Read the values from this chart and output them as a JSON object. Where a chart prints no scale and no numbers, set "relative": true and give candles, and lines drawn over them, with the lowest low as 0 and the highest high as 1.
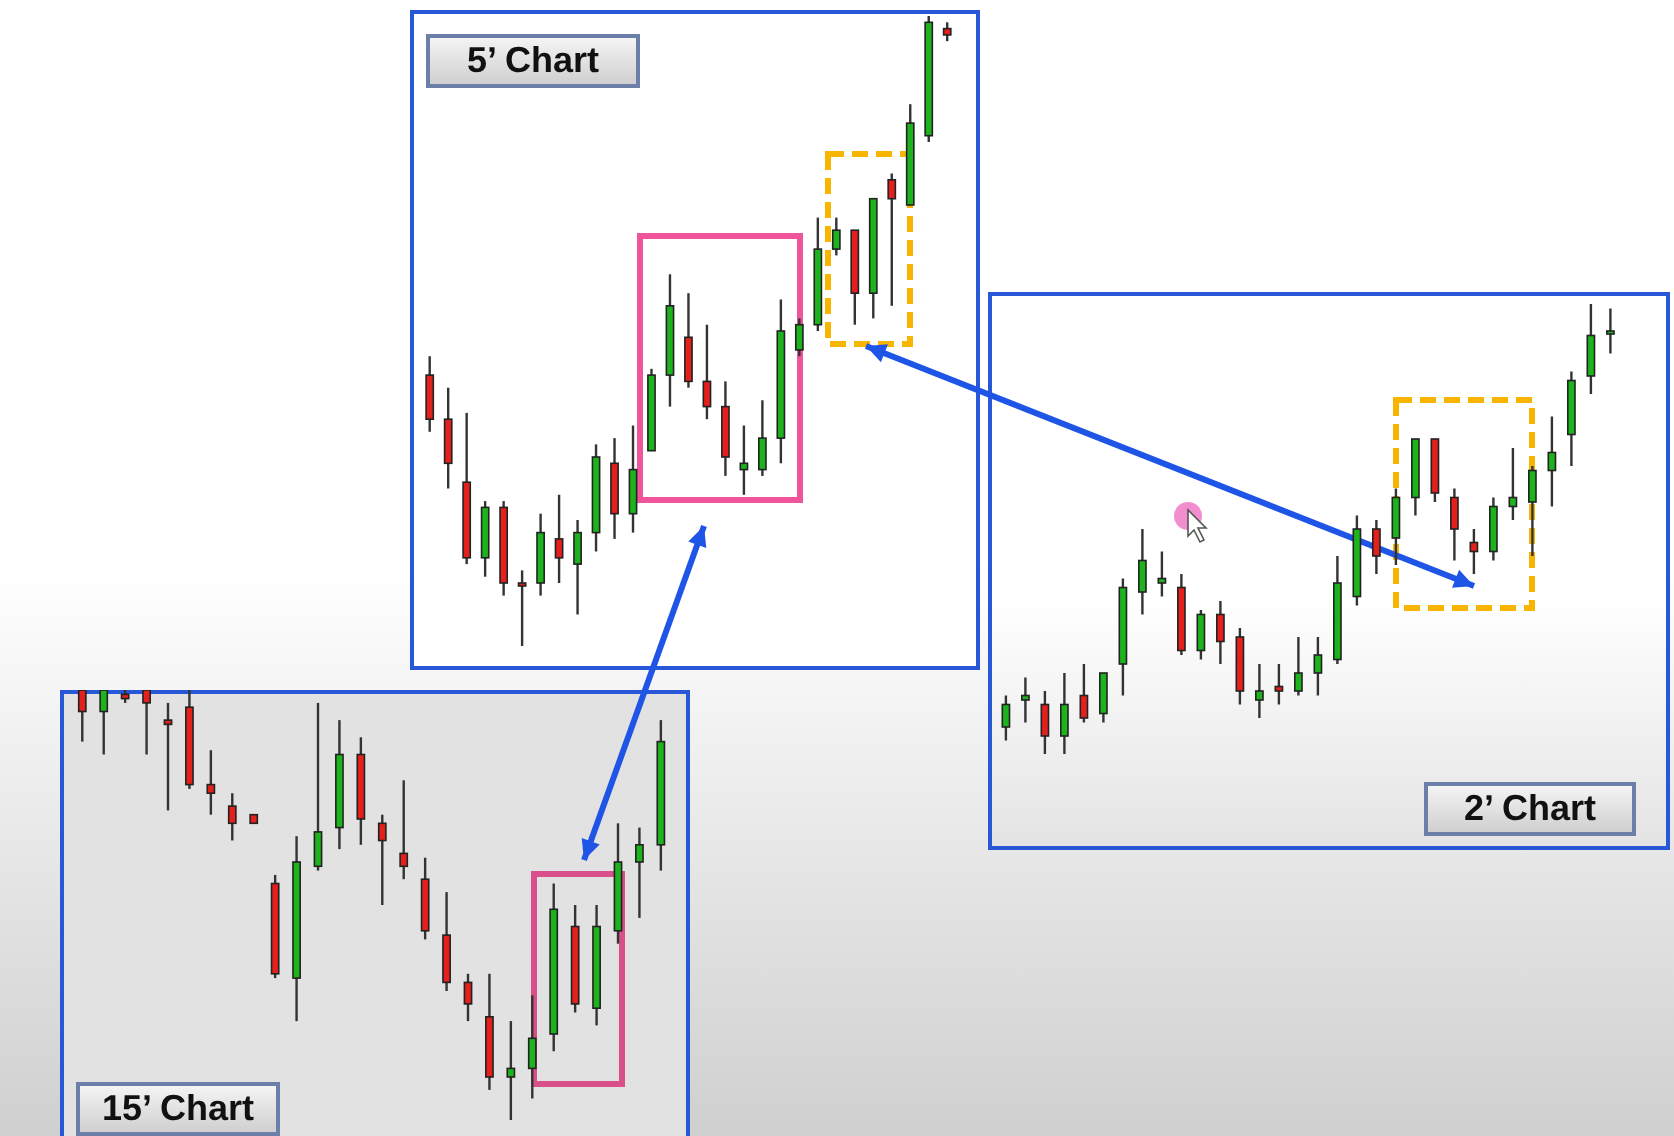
{
  "chart_data": [
    {
      "type": "candlestick",
      "title": "5’ Chart",
      "relative": true,
      "categories": [
        null,
        null,
        null,
        null,
        null,
        null,
        null,
        null,
        null,
        null,
        null,
        null,
        null,
        null,
        null,
        null,
        null,
        null,
        null,
        null,
        null,
        null,
        null,
        null,
        null,
        null,
        null,
        null,
        null
      ],
      "ohlc": [
        [
          0.43,
          0.46,
          0.34,
          0.36
        ],
        [
          0.36,
          0.41,
          0.25,
          0.29
        ],
        [
          0.26,
          0.37,
          0.13,
          0.14
        ],
        [
          0.14,
          0.23,
          0.11,
          0.22
        ],
        [
          0.22,
          0.23,
          0.08,
          0.1
        ],
        [
          0.1,
          0.12,
          0,
          0.1
        ],
        [
          0.1,
          0.21,
          0.08,
          0.18
        ],
        [
          0.17,
          0.24,
          0.1,
          0.14
        ],
        [
          0.13,
          0.2,
          0.05,
          0.18
        ],
        [
          0.18,
          0.32,
          0.15,
          0.3
        ],
        [
          0.29,
          0.33,
          0.17,
          0.21
        ],
        [
          0.21,
          0.35,
          0.18,
          0.28
        ],
        [
          0.31,
          0.44,
          0.31,
          0.43
        ],
        [
          0.43,
          0.59,
          0.38,
          0.54
        ],
        [
          0.49,
          0.56,
          0.41,
          0.42
        ],
        [
          0.42,
          0.51,
          0.36,
          0.38
        ],
        [
          0.38,
          0.42,
          0.27,
          0.3
        ],
        [
          0.28,
          0.35,
          0.24,
          0.29
        ],
        [
          0.28,
          0.39,
          0.27,
          0.33
        ],
        [
          0.33,
          0.55,
          0.29,
          0.5
        ],
        [
          0.47,
          0.52,
          0.46,
          0.51
        ],
        [
          0.51,
          0.68,
          0.5,
          0.63
        ],
        [
          0.63,
          0.68,
          0.62,
          0.66
        ],
        [
          0.66,
          0.66,
          0.51,
          0.56
        ],
        [
          0.56,
          0.71,
          0.52,
          0.71
        ],
        [
          0.74,
          0.75,
          0.54,
          0.71
        ],
        [
          0.7,
          0.86,
          0.7,
          0.83
        ],
        [
          0.81,
          1,
          0.8,
          0.99
        ],
        [
          0.98,
          0.99,
          0.96,
          0.97
        ]
      ],
      "colors": [
        "#e3201b",
        "#e3201b",
        "#e3201b",
        "#1db31d",
        "#e3201b",
        "#e3201b",
        "#1db31d",
        "#e3201b",
        "#1db31d",
        "#1db31d",
        "#e3201b",
        "#1db31d",
        "#1db31d",
        "#1db31d",
        "#e3201b",
        "#e3201b",
        "#e3201b",
        "#1db31d",
        "#1db31d",
        "#1db31d",
        "#1db31d",
        "#1db31d",
        "#1db31d",
        "#e3201b",
        "#1db31d",
        "#e3201b",
        "#1db31d",
        "#1db31d",
        "#e3201b"
      ]
    },
    {
      "type": "candlestick",
      "title": "2’ Chart",
      "relative": true,
      "categories": [
        null,
        null,
        null,
        null,
        null,
        null,
        null,
        null,
        null,
        null,
        null,
        null,
        null,
        null,
        null,
        null,
        null,
        null,
        null,
        null,
        null,
        null,
        null,
        null,
        null,
        null,
        null,
        null,
        null,
        null,
        null,
        null
      ],
      "ohlc": [
        [
          0.06,
          0.13,
          0.03,
          0.11
        ],
        [
          0.12,
          0.17,
          0.07,
          0.13
        ],
        [
          0.11,
          0.14,
          0,
          0.04
        ],
        [
          0.04,
          0.18,
          0,
          0.11
        ],
        [
          0.13,
          0.2,
          0.07,
          0.08
        ],
        [
          0.09,
          0.18,
          0.07,
          0.18
        ],
        [
          0.2,
          0.39,
          0.13,
          0.37
        ],
        [
          0.36,
          0.5,
          0.31,
          0.43
        ],
        [
          0.38,
          0.45,
          0.35,
          0.39
        ],
        [
          0.37,
          0.4,
          0.22,
          0.23
        ],
        [
          0.23,
          0.32,
          0.21,
          0.31
        ],
        [
          0.31,
          0.34,
          0.2,
          0.25
        ],
        [
          0.26,
          0.28,
          0.11,
          0.14
        ],
        [
          0.12,
          0.2,
          0.08,
          0.14
        ],
        [
          0.15,
          0.2,
          0.11,
          0.14
        ],
        [
          0.14,
          0.26,
          0.13,
          0.18
        ],
        [
          0.18,
          0.26,
          0.13,
          0.22
        ],
        [
          0.21,
          0.44,
          0.2,
          0.38
        ],
        [
          0.35,
          0.53,
          0.33,
          0.5
        ],
        [
          0.5,
          0.52,
          0.4,
          0.44
        ],
        [
          0.48,
          0.59,
          0.42,
          0.57
        ],
        [
          0.57,
          0.7,
          0.53,
          0.7
        ],
        [
          0.7,
          0.7,
          0.56,
          0.58
        ],
        [
          0.57,
          0.59,
          0.43,
          0.5
        ],
        [
          0.47,
          0.5,
          0.4,
          0.45
        ],
        [
          0.45,
          0.57,
          0.43,
          0.55
        ],
        [
          0.55,
          0.68,
          0.52,
          0.57
        ],
        [
          0.56,
          0.64,
          0.44,
          0.63
        ],
        [
          0.63,
          0.75,
          0.55,
          0.67
        ],
        [
          0.71,
          0.85,
          0.64,
          0.83
        ],
        [
          0.84,
          1,
          0.8,
          0.93
        ],
        [
          0.94,
          0.99,
          0.89,
          0.94
        ]
      ],
      "colors": [
        "#1db31d",
        "#1db31d",
        "#e3201b",
        "#1db31d",
        "#e3201b",
        "#1db31d",
        "#1db31d",
        "#1db31d",
        "#1db31d",
        "#e3201b",
        "#1db31d",
        "#e3201b",
        "#e3201b",
        "#1db31d",
        "#e3201b",
        "#1db31d",
        "#1db31d",
        "#1db31d",
        "#1db31d",
        "#e3201b",
        "#1db31d",
        "#1db31d",
        "#e3201b",
        "#e3201b",
        "#e3201b",
        "#1db31d",
        "#1db31d",
        "#1db31d",
        "#1db31d",
        "#1db31d",
        "#1db31d",
        "#1db31d"
      ]
    },
    {
      "type": "candlestick",
      "title": "15’ Chart",
      "relative": true,
      "categories": [
        null,
        null,
        null,
        null,
        null,
        null,
        null,
        null,
        null,
        null,
        null,
        null,
        null,
        null,
        null,
        null,
        null,
        null,
        null,
        null,
        null,
        null,
        null,
        null,
        null,
        null,
        null,
        null
      ],
      "ohlc": [
        [
          1,
          1,
          0.88,
          0.95
        ],
        [
          0.95,
          1,
          0.85,
          1
        ],
        [
          0.99,
          1,
          0.97,
          0.98
        ],
        [
          1,
          1,
          0.85,
          0.97
        ],
        [
          0.93,
          0.97,
          0.72,
          0.92
        ],
        [
          0.96,
          1,
          0.77,
          0.78
        ],
        [
          0.78,
          0.86,
          0.71,
          0.76
        ],
        [
          0.73,
          0.76,
          0.65,
          0.69
        ],
        [
          0.71,
          0.71,
          0.69,
          0.69
        ],
        [
          0.55,
          0.57,
          0.33,
          0.34
        ],
        [
          0.33,
          0.66,
          0.23,
          0.6
        ],
        [
          0.59,
          0.97,
          0.58,
          0.67
        ],
        [
          0.68,
          0.93,
          0.63,
          0.85
        ],
        [
          0.85,
          0.89,
          0.64,
          0.7
        ],
        [
          0.69,
          0.71,
          0.5,
          0.65
        ],
        [
          0.62,
          0.79,
          0.56,
          0.59
        ],
        [
          0.56,
          0.61,
          0.42,
          0.44
        ],
        [
          0.43,
          0.53,
          0.3,
          0.32
        ],
        [
          0.32,
          0.34,
          0.23,
          0.27
        ],
        [
          0.24,
          0.34,
          0.07,
          0.1
        ],
        [
          0.1,
          0.23,
          0,
          0.12
        ],
        [
          0.12,
          0.29,
          0.05,
          0.19
        ],
        [
          0.2,
          0.55,
          0.16,
          0.49
        ],
        [
          0.45,
          0.5,
          0.25,
          0.27
        ],
        [
          0.26,
          0.5,
          0.22,
          0.45
        ],
        [
          0.44,
          0.69,
          0.41,
          0.6
        ],
        [
          0.6,
          0.68,
          0.47,
          0.64
        ],
        [
          0.64,
          0.93,
          0.58,
          0.88
        ]
      ],
      "colors": [
        "#e3201b",
        "#1db31d",
        "#e3201b",
        "#e3201b",
        "#e3201b",
        "#e3201b",
        "#e3201b",
        "#e3201b",
        "#e3201b",
        "#e3201b",
        "#1db31d",
        "#1db31d",
        "#1db31d",
        "#e3201b",
        "#e3201b",
        "#e3201b",
        "#e3201b",
        "#e3201b",
        "#e3201b",
        "#e3201b",
        "#1db31d",
        "#1db31d",
        "#1db31d",
        "#e3201b",
        "#1db31d",
        "#1db31d",
        "#1db31d",
        "#1db31d"
      ]
    }
  ]
}
